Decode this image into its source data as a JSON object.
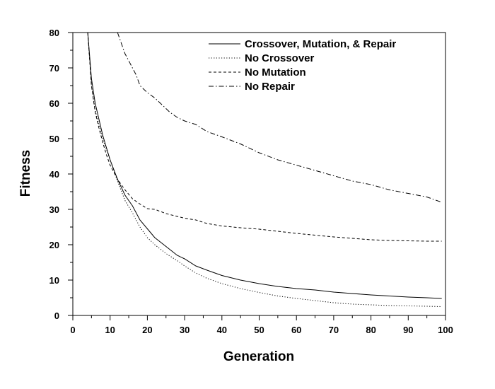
{
  "chart_data": {
    "type": "line",
    "xlabel": "Generation",
    "ylabel": "Fitness",
    "xlim": [
      0,
      100
    ],
    "ylim": [
      0,
      80
    ],
    "xticks": [
      0,
      10,
      20,
      30,
      40,
      50,
      60,
      70,
      80,
      90,
      100
    ],
    "yticks": [
      0,
      10,
      20,
      30,
      40,
      50,
      60,
      70,
      80
    ],
    "grid": false,
    "legend_position": "top-right",
    "series": [
      {
        "name": "Crossover, Mutation, & Repair",
        "dash": "solid",
        "x": [
          4,
          5,
          6,
          7,
          8,
          9,
          10,
          12,
          14,
          16,
          18,
          20,
          22,
          25,
          28,
          30,
          33,
          36,
          40,
          45,
          50,
          55,
          60,
          65,
          70,
          75,
          80,
          85,
          90,
          95,
          99
        ],
        "y": [
          80,
          67,
          60,
          55.5,
          51,
          47.5,
          44,
          38.5,
          34,
          31,
          27,
          24.5,
          22,
          19.5,
          17,
          16,
          14,
          12.8,
          11.3,
          10,
          9,
          8.2,
          7.6,
          7.2,
          6.6,
          6.2,
          5.8,
          5.5,
          5.2,
          5,
          4.8
        ]
      },
      {
        "name": "No Crossover",
        "dash": "dotted",
        "x": [
          4,
          5,
          6,
          7,
          8,
          9,
          10,
          12,
          14,
          16,
          18,
          20,
          22,
          25,
          28,
          30,
          33,
          36,
          40,
          45,
          50,
          55,
          60,
          65,
          70,
          75,
          80,
          85,
          90,
          95,
          99
        ],
        "y": [
          80,
          65,
          58,
          54,
          50,
          47,
          44,
          38,
          32.5,
          29,
          25,
          22,
          20,
          17.5,
          15.5,
          14,
          12,
          10.5,
          9,
          7.6,
          6.5,
          5.5,
          4.8,
          4.2,
          3.6,
          3.2,
          3,
          2.8,
          2.7,
          2.6,
          2.5
        ]
      },
      {
        "name": "No Mutation",
        "dash": "dashed",
        "x": [
          4,
          5,
          6,
          7,
          8,
          9,
          10,
          12,
          14,
          16,
          18,
          20,
          22,
          25,
          28,
          30,
          33,
          36,
          40,
          45,
          50,
          55,
          60,
          65,
          70,
          75,
          80,
          85,
          90,
          95,
          99
        ],
        "y": [
          80,
          65,
          57.5,
          53,
          49,
          45.5,
          42.5,
          38.5,
          35.5,
          33,
          31.5,
          30.2,
          30,
          28.8,
          28,
          27.5,
          27,
          26,
          25.3,
          24.8,
          24.4,
          23.8,
          23.2,
          22.7,
          22.2,
          21.8,
          21.4,
          21.2,
          21.1,
          21,
          21
        ]
      },
      {
        "name": "No Repair",
        "dash": "dashdot",
        "x": [
          12,
          13,
          14,
          15,
          16,
          17,
          18,
          20,
          22,
          24,
          26,
          28,
          30,
          33,
          36,
          40,
          45,
          50,
          55,
          60,
          65,
          70,
          75,
          80,
          85,
          90,
          95,
          99
        ],
        "y": [
          80,
          77,
          74,
          72,
          70,
          68,
          65,
          63,
          61.5,
          59.5,
          57.5,
          56,
          55,
          54,
          52,
          50.5,
          48.5,
          46,
          44,
          42.5,
          41,
          39.5,
          38,
          37,
          35.5,
          34.5,
          33.5,
          32
        ]
      }
    ]
  }
}
